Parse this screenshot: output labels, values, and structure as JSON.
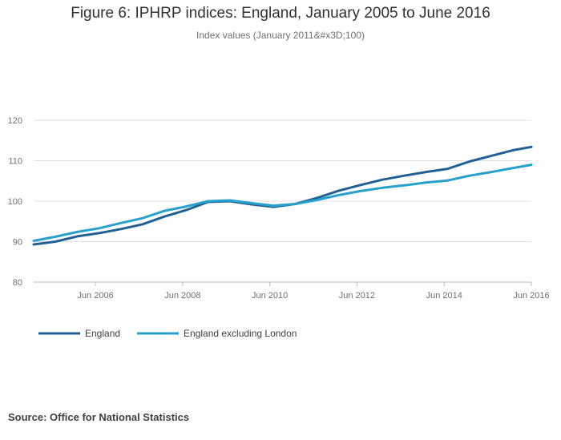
{
  "chart_data": {
    "type": "line",
    "title": "Figure 6: IPHRP indices: England, January 2005 to June 2016",
    "subtitle": "Index values (January 2011&#x3D;100)",
    "ylim": [
      80,
      120
    ],
    "yticks": [
      "80",
      "90",
      "100",
      "110",
      "120"
    ],
    "xlim": [
      "2005-01",
      "2016-06"
    ],
    "xticks": [
      {
        "date": "2006-06",
        "label": "Jun 2006"
      },
      {
        "date": "2008-06",
        "label": "Jun 2008"
      },
      {
        "date": "2010-06",
        "label": "Jun 2010"
      },
      {
        "date": "2012-06",
        "label": "Jun 2012"
      },
      {
        "date": "2014-06",
        "label": "Jun 2014"
      },
      {
        "date": "2016-06",
        "label": "Jun 2016"
      }
    ],
    "grid": true,
    "legend": "bottom-left",
    "series": [
      {
        "name": "England",
        "color": "#206095",
        "points": [
          [
            "2005-01",
            89.3
          ],
          [
            "2005-07",
            90.0
          ],
          [
            "2006-01",
            91.3
          ],
          [
            "2006-07",
            92.1
          ],
          [
            "2007-01",
            93.1
          ],
          [
            "2007-07",
            94.3
          ],
          [
            "2008-01",
            96.2
          ],
          [
            "2008-07",
            97.8
          ],
          [
            "2009-01",
            99.8
          ],
          [
            "2009-07",
            100.0
          ],
          [
            "2010-01",
            99.2
          ],
          [
            "2010-07",
            98.6
          ],
          [
            "2011-01",
            99.3
          ],
          [
            "2011-07",
            100.8
          ],
          [
            "2012-01",
            102.6
          ],
          [
            "2012-07",
            104.0
          ],
          [
            "2013-01",
            105.3
          ],
          [
            "2013-07",
            106.3
          ],
          [
            "2014-01",
            107.2
          ],
          [
            "2014-07",
            108.0
          ],
          [
            "2015-01",
            109.8
          ],
          [
            "2015-07",
            111.2
          ],
          [
            "2016-01",
            112.6
          ],
          [
            "2016-06",
            113.4
          ]
        ]
      },
      {
        "name": "England excluding London",
        "color": "#27a0cc",
        "points": [
          [
            "2005-01",
            90.2
          ],
          [
            "2005-07",
            91.2
          ],
          [
            "2006-01",
            92.4
          ],
          [
            "2006-07",
            93.3
          ],
          [
            "2007-01",
            94.6
          ],
          [
            "2007-07",
            95.8
          ],
          [
            "2008-01",
            97.6
          ],
          [
            "2008-07",
            98.7
          ],
          [
            "2009-01",
            100.0
          ],
          [
            "2009-07",
            100.2
          ],
          [
            "2010-01",
            99.5
          ],
          [
            "2010-07",
            98.9
          ],
          [
            "2011-01",
            99.3
          ],
          [
            "2011-07",
            100.3
          ],
          [
            "2012-01",
            101.5
          ],
          [
            "2012-07",
            102.5
          ],
          [
            "2013-01",
            103.3
          ],
          [
            "2013-07",
            103.9
          ],
          [
            "2014-01",
            104.6
          ],
          [
            "2014-07",
            105.1
          ],
          [
            "2015-01",
            106.3
          ],
          [
            "2015-07",
            107.2
          ],
          [
            "2016-01",
            108.2
          ],
          [
            "2016-06",
            109.0
          ]
        ]
      }
    ],
    "source": "Source: Office for National Statistics"
  }
}
